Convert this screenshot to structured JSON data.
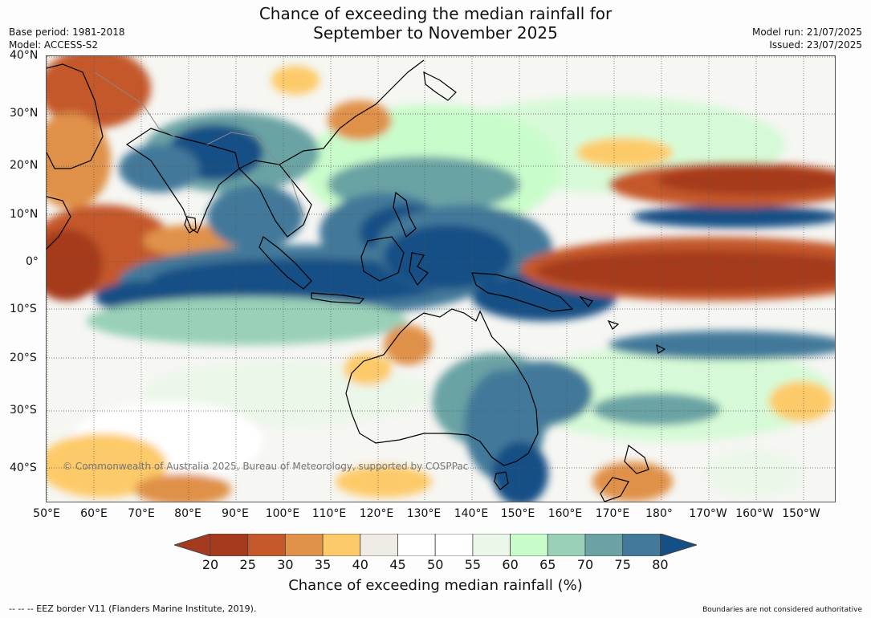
{
  "title_line1": "Chance of exceeding the median rainfall for",
  "title_line2": "September to November 2025",
  "meta_left": {
    "line1": "Base period: 1981-2018",
    "line2": "Model: ACCESS-S2"
  },
  "meta_right": {
    "line1": "Model run: 21/07/2025",
    "line2": "Issued: 23/07/2025"
  },
  "lat_labels": [
    "40°N",
    "30°N",
    "20°N",
    "10°N",
    "0°",
    "10°S",
    "20°S",
    "30°S",
    "40°S"
  ],
  "lon_labels": [
    "50°E",
    "60°E",
    "70°E",
    "80°E",
    "90°E",
    "100°E",
    "110°E",
    "120°E",
    "130°E",
    "140°E",
    "150°E",
    "160°E",
    "170°E",
    "180°",
    "170°W",
    "160°W",
    "150°W"
  ],
  "copyright": "© Commonwealth of Australia 2025, Bureau of Meteorology, supported by COSPPac",
  "colorbar": {
    "ticks": [
      "20",
      "25",
      "30",
      "35",
      "40",
      "45",
      "50",
      "55",
      "60",
      "65",
      "70",
      "75",
      "80"
    ],
    "colors": [
      "#a63a1e",
      "#c4582b",
      "#e0914a",
      "#fdca69",
      "#efece6",
      "#ffffff",
      "#ffffff",
      "#ebf7e9",
      "#c9fccb",
      "#9ad0b8",
      "#6ba3a4",
      "#43799a",
      "#144f85"
    ],
    "label": "Chance of exceeding median rainfall (%)"
  },
  "footer_left": "--  --  -- EEZ border V11 (Flanders Marine Institute, 2019).",
  "footer_right": "Boundaries are not considered authoritative"
}
